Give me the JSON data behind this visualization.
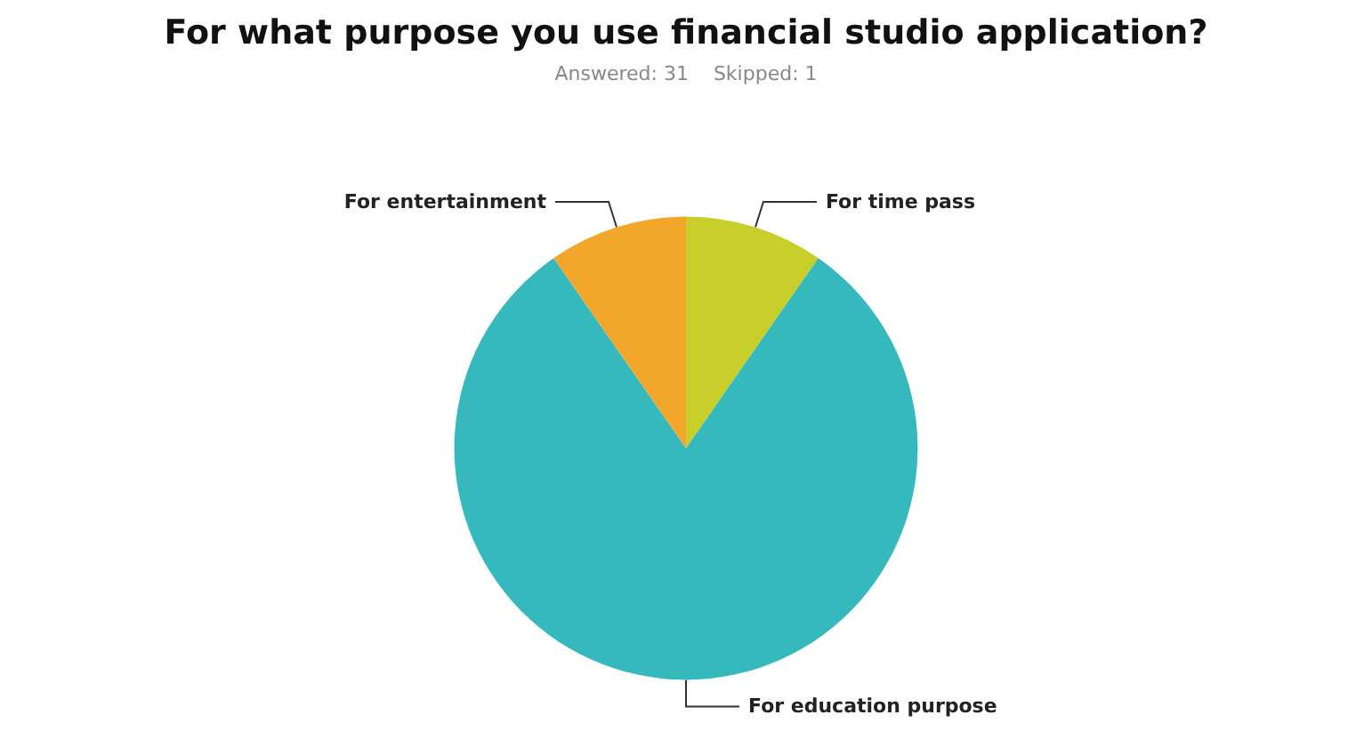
{
  "chart_data": {
    "type": "pie",
    "title": "For what purpose you use financial studio application?",
    "subtitle": "Answered: 31    Skipped: 1",
    "categories": [
      "For time pass",
      "For education purpose",
      "For entertainment"
    ],
    "values": [
      9.68,
      80.65,
      9.68
    ],
    "colors": [
      "#c9cf2a",
      "#35b9bd",
      "#f3a72a"
    ],
    "legend": false
  }
}
